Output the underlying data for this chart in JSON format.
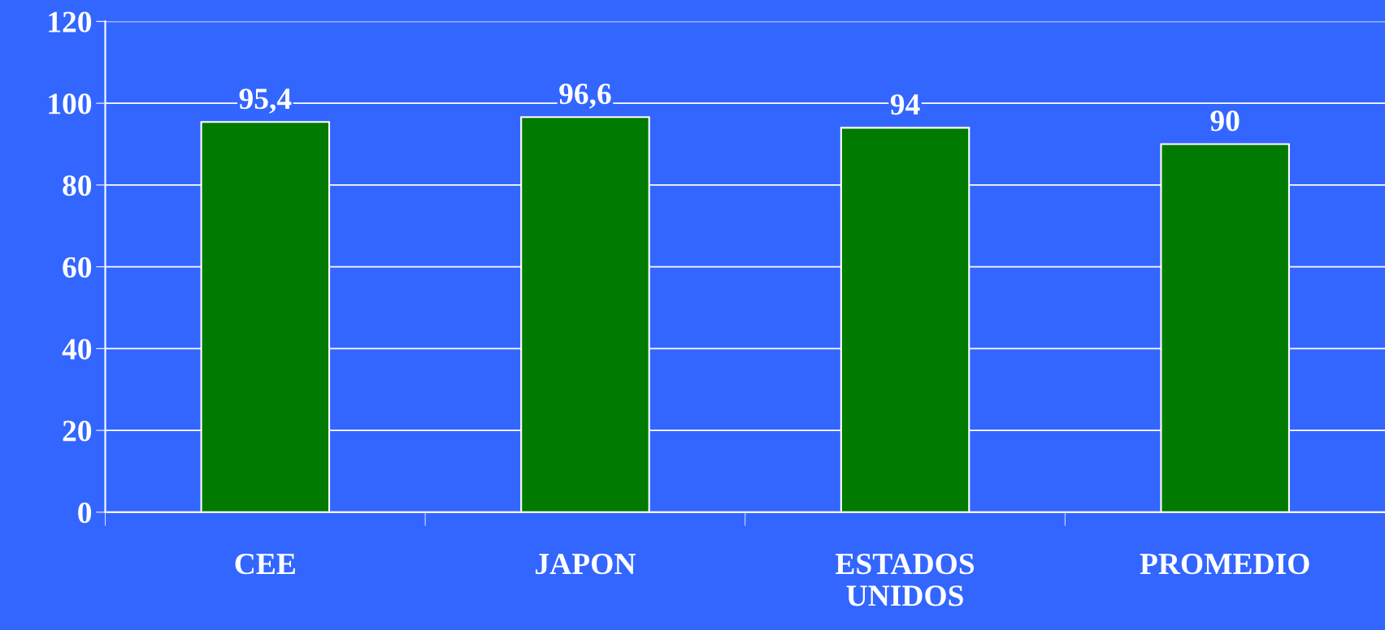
{
  "chart_data": {
    "type": "bar",
    "categories": [
      "CEE",
      "JAPON",
      "ESTADOS\nUNIDOS",
      "PROMEDIO"
    ],
    "values": [
      95.4,
      96.6,
      94,
      90
    ],
    "value_labels": [
      "95,4",
      "96,6",
      "94",
      "90"
    ],
    "color": "#007a00",
    "ylim": [
      0,
      120
    ],
    "yticks": [
      0,
      20,
      40,
      60,
      80,
      100,
      120
    ],
    "grid": "y"
  }
}
